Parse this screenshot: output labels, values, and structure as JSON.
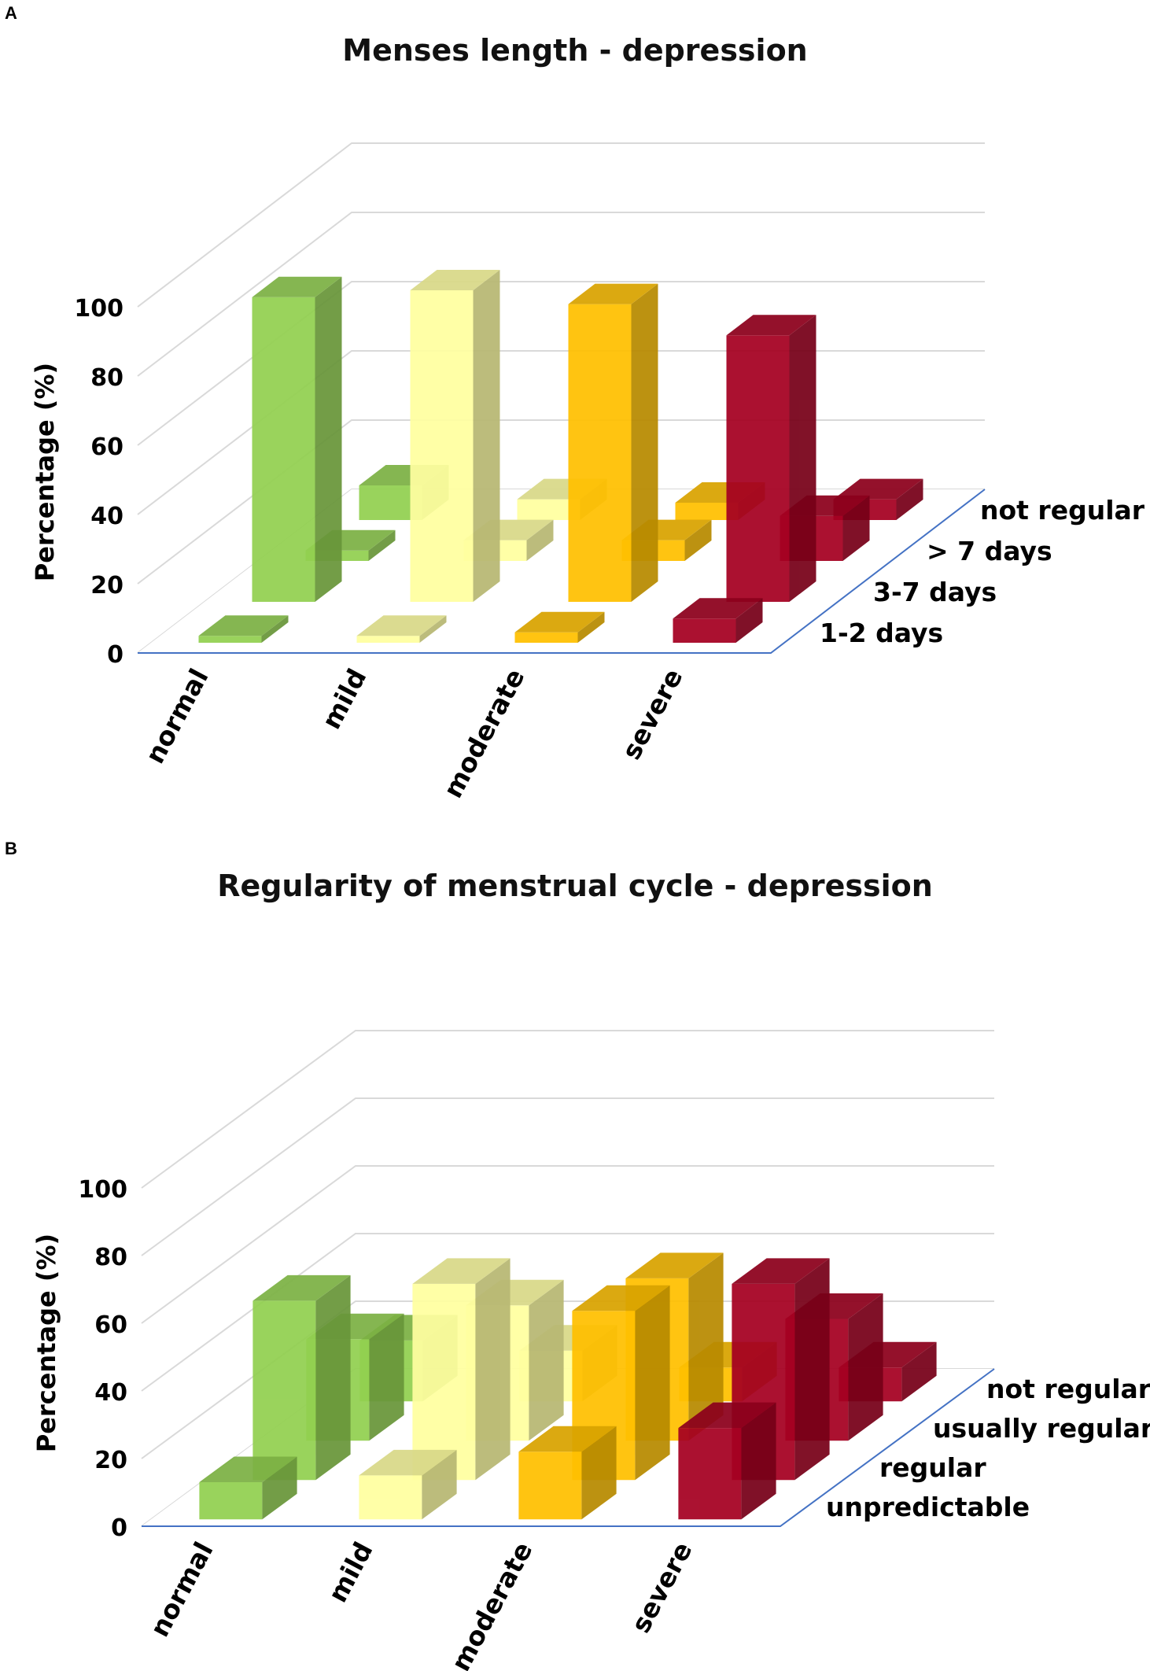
{
  "chart_data": [
    {
      "panel": "A",
      "type": "bar",
      "title": "Menses length - depression",
      "ylabel": "Percentage (%)",
      "ylim": [
        0,
        100
      ],
      "yticks": [
        "0",
        "20",
        "40",
        "60",
        "80",
        "100"
      ],
      "categories": [
        "normal",
        "mild",
        "moderate",
        "severe"
      ],
      "series": [
        {
          "name": "1-2 days",
          "values": [
            2,
            2,
            3,
            7
          ]
        },
        {
          "name": "3-7 days",
          "values": [
            88,
            90,
            86,
            77
          ]
        },
        {
          "name": "> 7 days",
          "values": [
            3,
            6,
            6,
            13
          ]
        },
        {
          "name": "not regular",
          "values": [
            10,
            6,
            5,
            6
          ]
        }
      ],
      "colors": [
        "#92D050",
        "#FFFFA0",
        "#FFC000",
        "#A50021"
      ]
    },
    {
      "panel": "B",
      "type": "bar",
      "title": "Regularity of menstrual cycle - depression",
      "ylabel": "Percentage (%)",
      "ylim": [
        0,
        100
      ],
      "yticks": [
        "0",
        "20",
        "40",
        "60",
        "80",
        "100"
      ],
      "categories": [
        "normal",
        "mild",
        "moderate",
        "severe"
      ],
      "series": [
        {
          "name": "unpredictable",
          "values": [
            11,
            13,
            20,
            27
          ]
        },
        {
          "name": "regular",
          "values": [
            53,
            58,
            50,
            58
          ]
        },
        {
          "name": "usually regular",
          "values": [
            30,
            40,
            48,
            36
          ]
        },
        {
          "name": "not regular",
          "values": [
            18,
            15,
            10,
            10
          ]
        }
      ],
      "colors": [
        "#92D050",
        "#FFFFA0",
        "#FFC000",
        "#A50021"
      ]
    }
  ]
}
